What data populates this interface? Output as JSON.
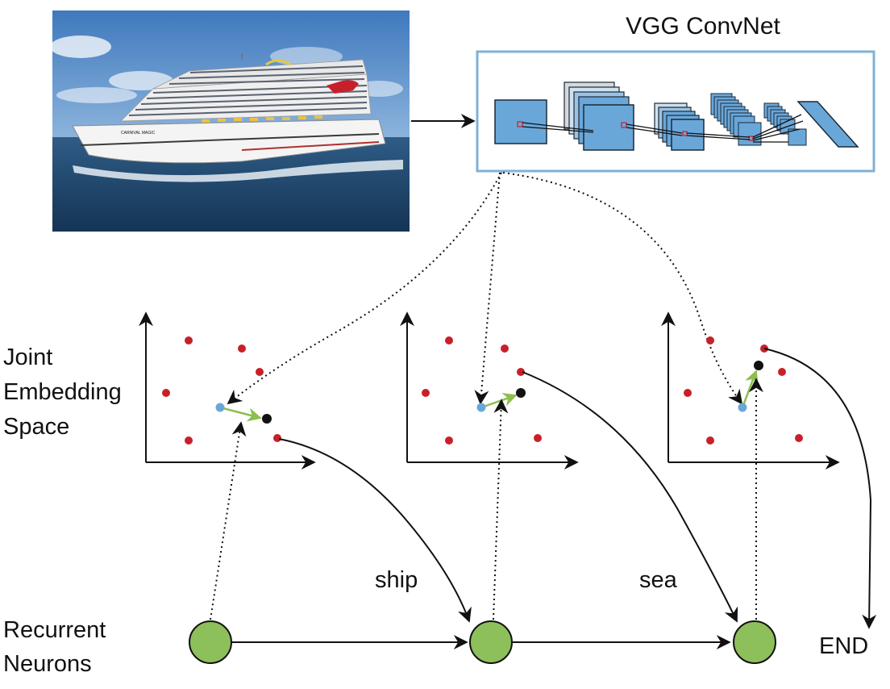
{
  "photo": {
    "subject": "cruise ship at sea",
    "hull_text": "CARNIVAL MAGIC"
  },
  "convnet": {
    "title": "VGG ConvNet"
  },
  "left_labels": {
    "joint_line1": "Joint",
    "joint_line2": "Embedding",
    "joint_line3": "Space",
    "recurrent_line1": "Recurrent",
    "recurrent_line2": "Neurons"
  },
  "words": {
    "w1": "ship",
    "w2": "sea",
    "end": "END"
  },
  "colors": {
    "embedding_point": "#c8202a",
    "query_point": "#6aa7d9",
    "predicted_point": "#111111",
    "offset_arrow": "#8cbf4e",
    "neuron_fill": "#8dbf5a",
    "convnet_border": "#7fb2d6",
    "convnet_block": "#6aa7d9"
  }
}
